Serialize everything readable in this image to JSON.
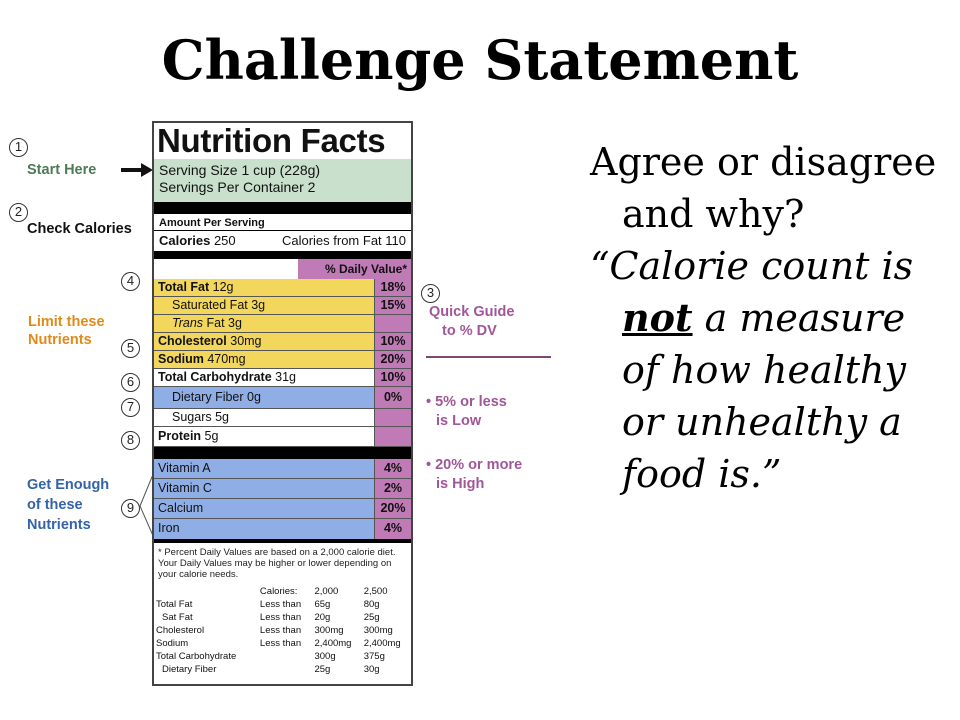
{
  "slide": {
    "title": "Challenge Statement"
  },
  "statement": {
    "question": "Agree or disagree and why?",
    "quote_before": "“Calorie count is ",
    "quote_emph": "not",
    "quote_after": " a measure of how healthy or unhealthy a food is.”"
  },
  "annotations": {
    "steps": [
      "1",
      "2",
      "3",
      "4",
      "5",
      "6",
      "7",
      "8",
      "9"
    ],
    "start_here": "Start Here",
    "check_calories": "Check Calories",
    "limit_line1": "Limit these",
    "limit_line2": "Nutrients",
    "enough_line1": "Get Enough",
    "enough_line2": "of these",
    "enough_line3": "Nutrients",
    "quick_line1": "Quick Guide",
    "quick_line2": "to % DV",
    "low_line1": "• 5% or less",
    "low_line2": "is Low",
    "high_line1": "• 20% or more",
    "high_line2": "is High"
  },
  "label": {
    "title": "Nutrition Facts",
    "serving_size": "Serving Size 1 cup (228g)",
    "servings": "Servings Per Container  2",
    "amount_per_serving": "Amount Per Serving",
    "calories_label": "Calories",
    "calories_value": "250",
    "calories_fat": "Calories from Fat 110",
    "dv_header": "% Daily Value*",
    "rows": [
      {
        "pre": "Total Fat",
        "post": " 12g",
        "pct": "18%"
      },
      {
        "pre": "Saturated Fat",
        "post": " 3g",
        "pct": "15%"
      },
      {
        "pre": "Trans",
        "post": " Fat 3g",
        "pct": ""
      },
      {
        "pre": "Cholesterol",
        "post": " 30mg",
        "pct": "10%"
      },
      {
        "pre": "Sodium",
        "post": " 470mg",
        "pct": "20%"
      },
      {
        "pre": "Total Carbohydrate",
        "post": " 31g",
        "pct": "10%"
      },
      {
        "pre": "Dietary Fiber",
        "post": " 0g",
        "pct": "0%"
      },
      {
        "pre": "Sugars",
        "post": " 5g",
        "pct": ""
      },
      {
        "pre": "Protein",
        "post": " 5g",
        "pct": ""
      }
    ],
    "vitamins": [
      {
        "name": "Vitamin A",
        "pct": "4%"
      },
      {
        "name": "Vitamin C",
        "pct": "2%"
      },
      {
        "name": "Calcium",
        "pct": "20%"
      },
      {
        "name": "Iron",
        "pct": "4%"
      }
    ],
    "footnote": "* Percent Daily Values are based on a 2,000 calorie diet. Your Daily Values may be higher or lower depending on your calorie needs.",
    "table": {
      "header": [
        "",
        "Calories:",
        "2,000",
        "2,500"
      ],
      "rows": [
        [
          "Total Fat",
          "Less than",
          "65g",
          "80g"
        ],
        [
          "Sat Fat",
          "Less than",
          "20g",
          "25g"
        ],
        [
          "Cholesterol",
          "Less than",
          "300mg",
          "300mg"
        ],
        [
          "Sodium",
          "Less than",
          "2,400mg",
          "2,400mg"
        ],
        [
          "Total Carbohydrate",
          "",
          "300g",
          "375g"
        ],
        [
          "Dietary Fiber",
          "",
          "25g",
          "30g"
        ]
      ]
    }
  }
}
